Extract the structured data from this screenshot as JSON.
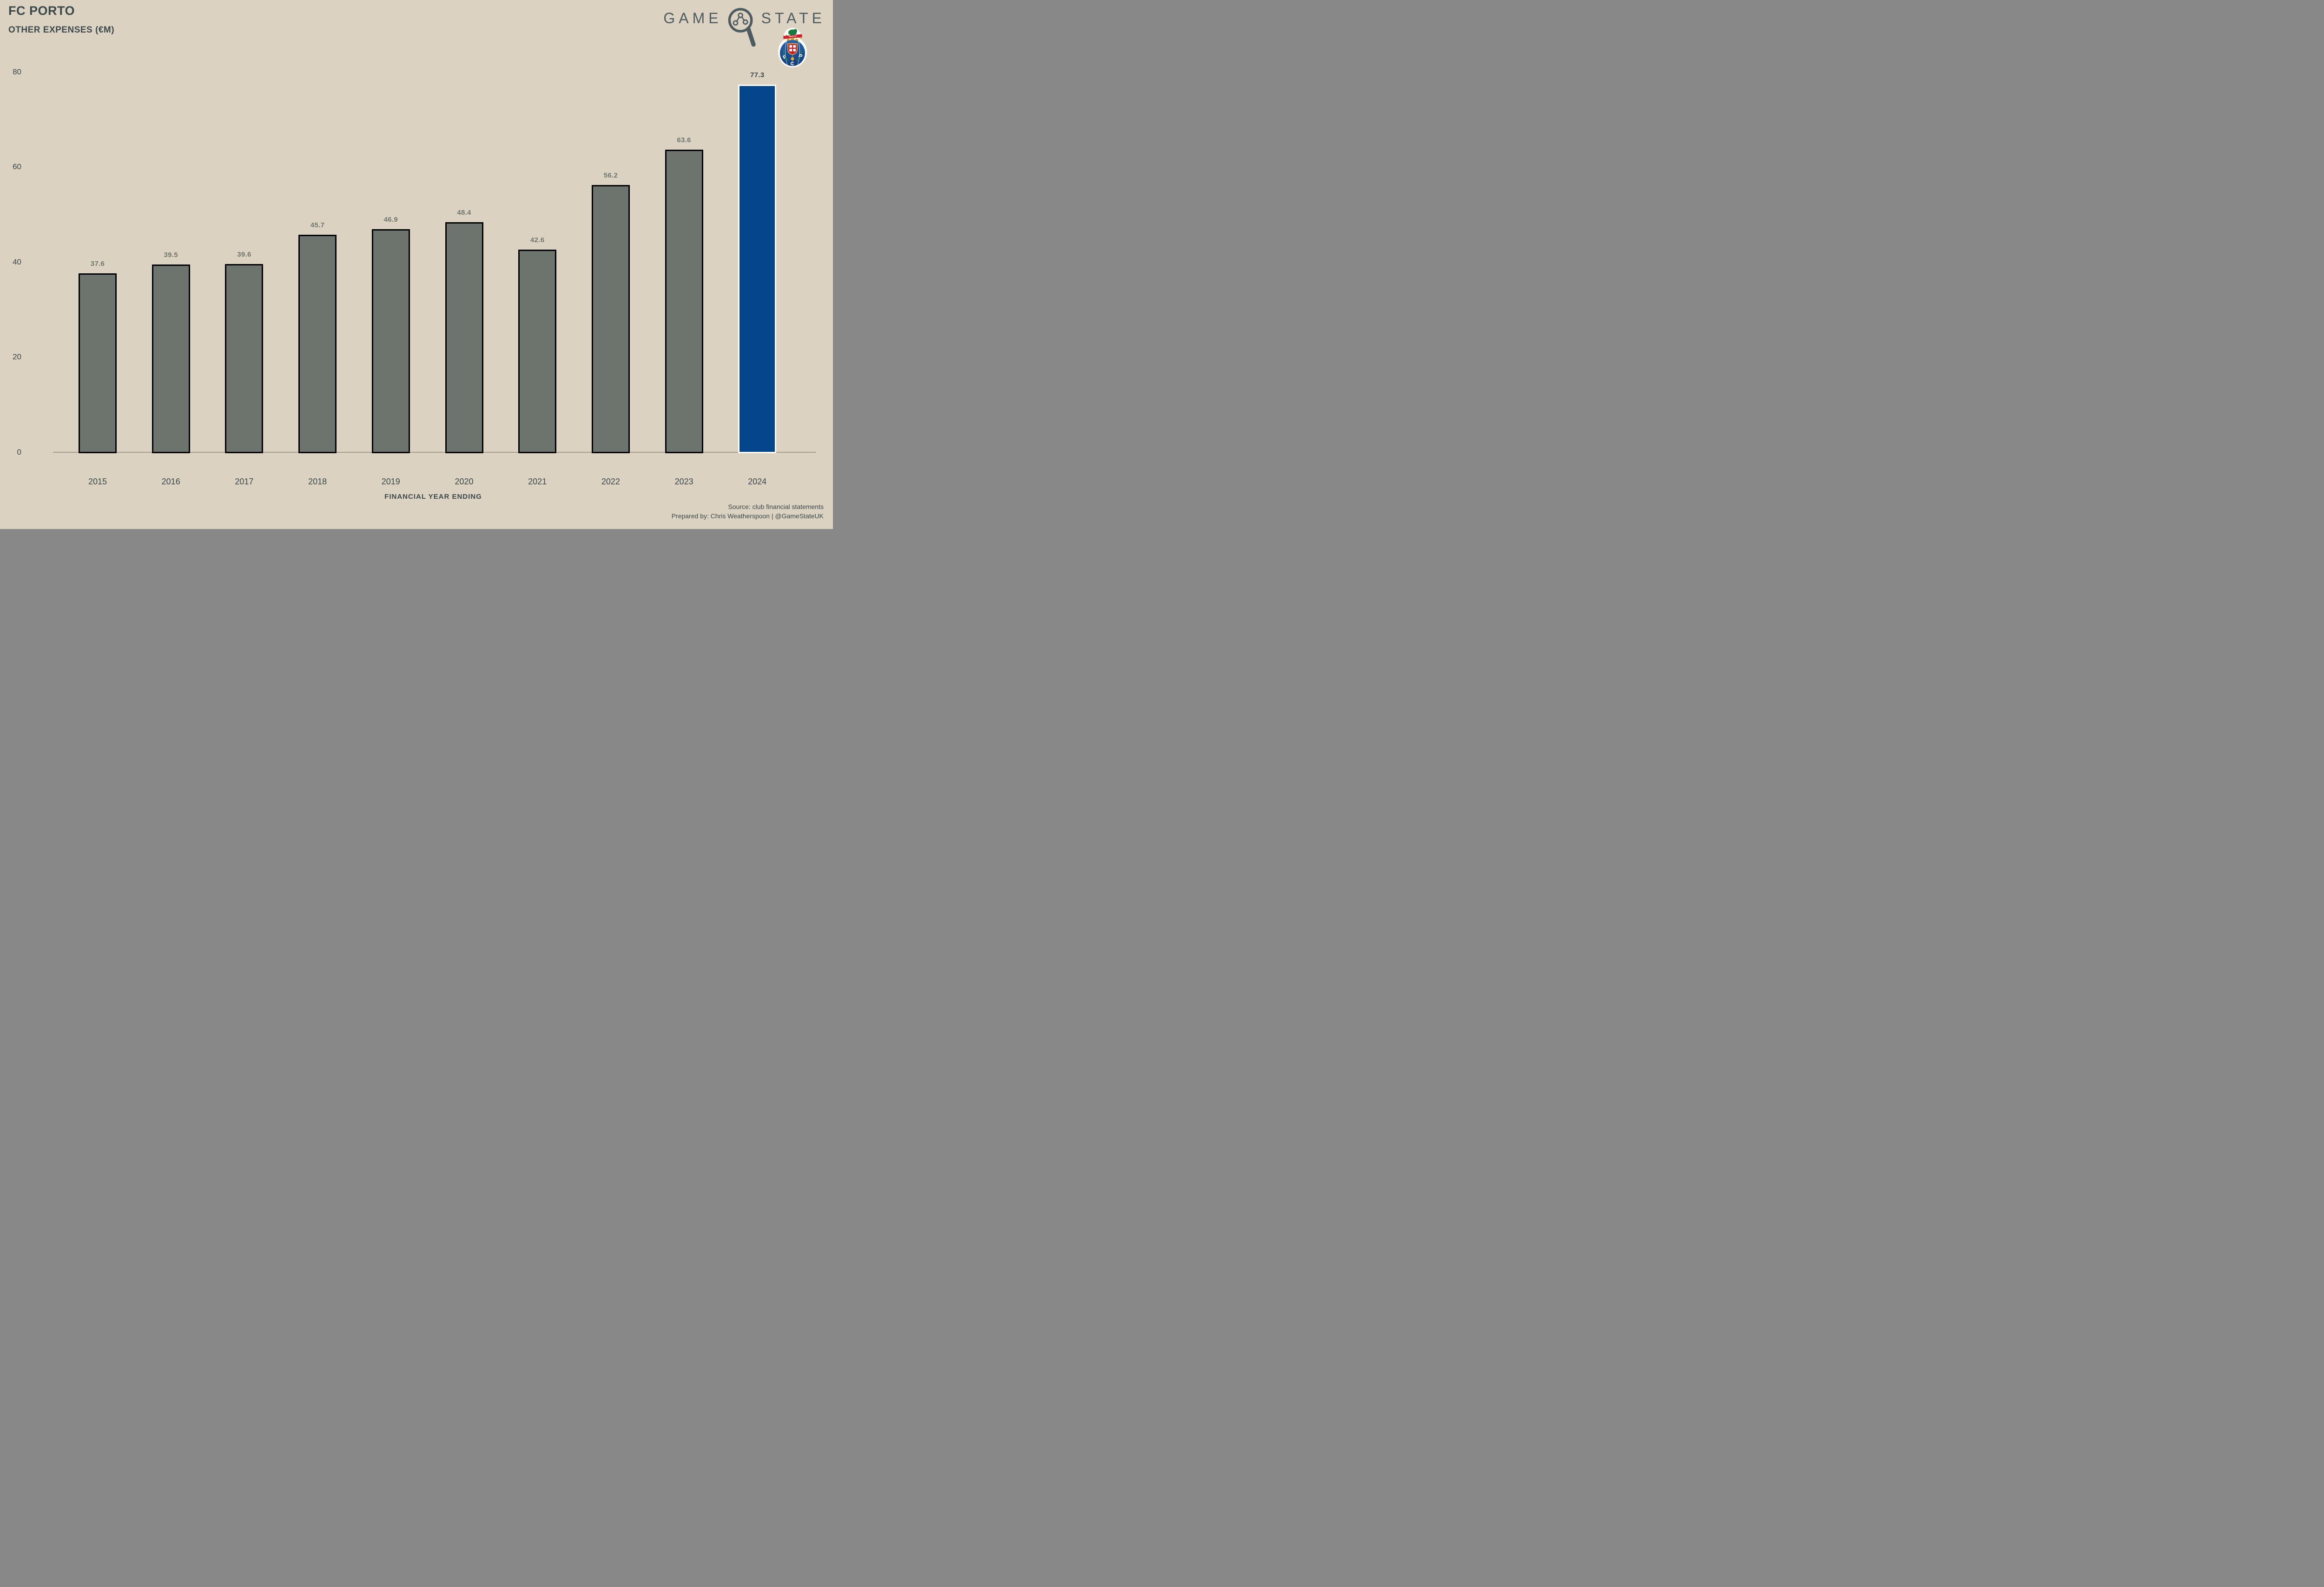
{
  "header": {
    "title": "FC PORTO",
    "subtitle": "OTHER EXPENSES (€M)"
  },
  "brand": {
    "word_left": "GAME",
    "word_right": "STATE"
  },
  "crest": {
    "letters": [
      "F",
      "C",
      "P"
    ],
    "banner": "INVICTA"
  },
  "chart_data": {
    "type": "bar",
    "title": "FC PORTO — OTHER EXPENSES (€M)",
    "categories": [
      "2015",
      "2016",
      "2017",
      "2018",
      "2019",
      "2020",
      "2021",
      "2022",
      "2023",
      "2024"
    ],
    "values": [
      37.6,
      39.5,
      39.6,
      45.7,
      46.9,
      48.4,
      42.6,
      56.2,
      63.6,
      77.3
    ],
    "xlabel": "FINANCIAL YEAR ENDING",
    "ylabel": "",
    "ylim": [
      0,
      80
    ],
    "yticks": [
      0,
      20,
      40,
      60,
      80
    ],
    "grid": false,
    "legend": "none",
    "highlight_category": "2024",
    "bar_color": "#6d746d",
    "bar_border": "#000000",
    "highlight_color": "#05458c",
    "highlight_border": "#ffffff",
    "label_color": "#70776f",
    "highlight_label_color": "#3c4a4e"
  },
  "footer": {
    "source": "Source: club financial statements",
    "prepared_by": "Prepared by: Chris Weatherspoon | @GameStateUK"
  },
  "colors": {
    "background": "#dcd2c2",
    "text": "#3a484c",
    "brand": "#4e5c61",
    "axis_line": "#a89e92"
  }
}
